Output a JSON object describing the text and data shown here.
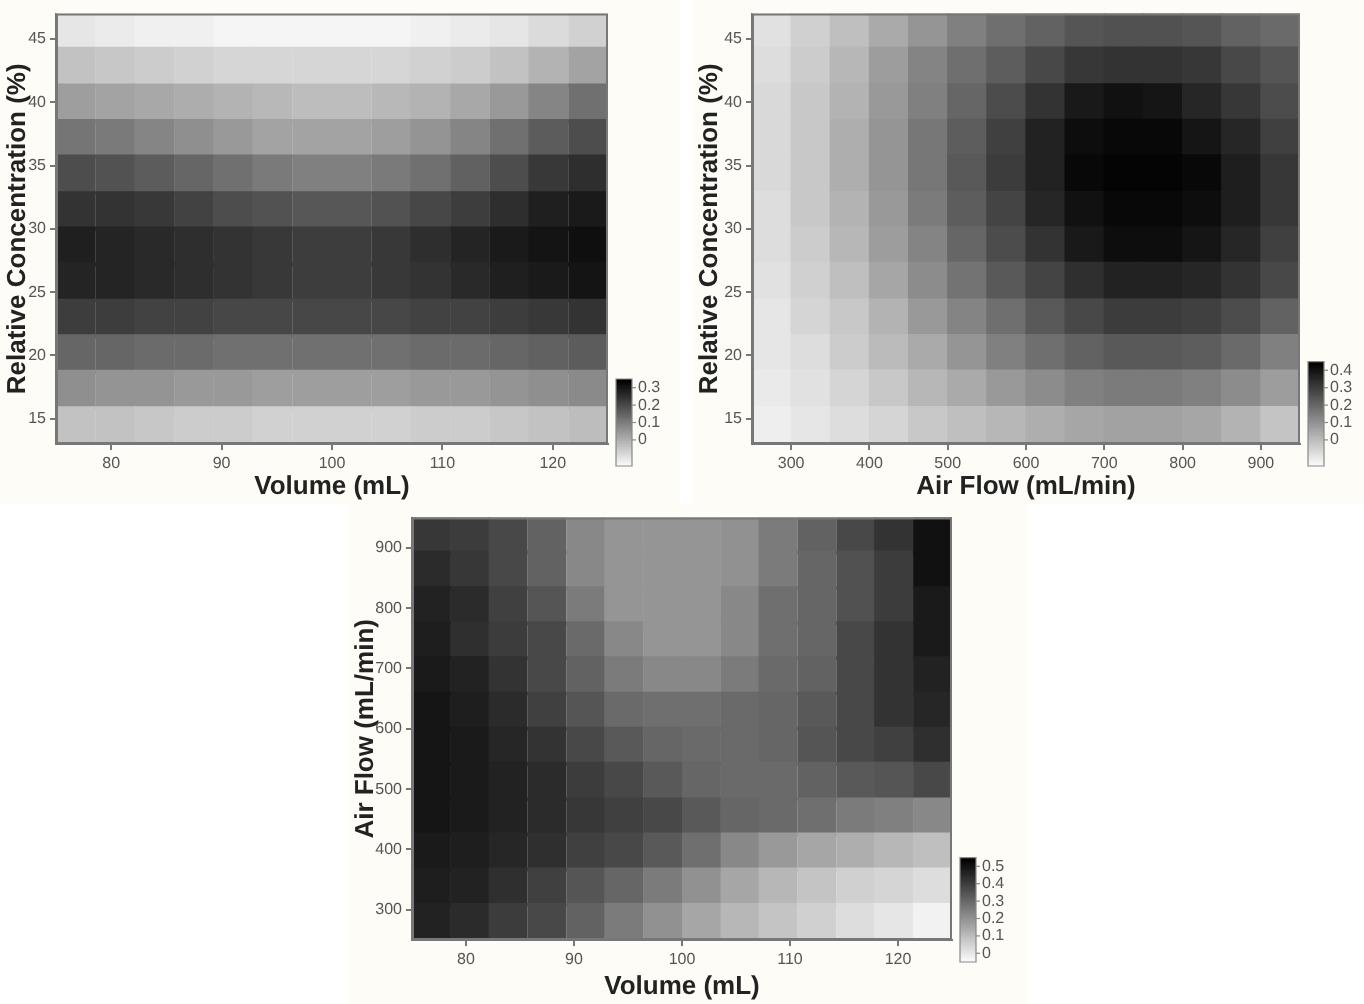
{
  "chart_data": [
    {
      "type": "scatter",
      "xlabel": "Volume (mL)",
      "ylabel": "Relative Concentration (%)",
      "marker": "square",
      "x": [
        76.8,
        80.4,
        83.9,
        87.5,
        91.1,
        94.6,
        98.2,
        101.8,
        105.4,
        108.9,
        112.5,
        116.1,
        119.6,
        123.2,
        76.8,
        80.4,
        83.9,
        87.5,
        91.1,
        94.6,
        98.2,
        101.8,
        105.4,
        108.9,
        112.5,
        116.1,
        119.6,
        123.2,
        76.8,
        80.4,
        83.9,
        87.5,
        91.1,
        94.6,
        98.2,
        101.8,
        105.4,
        108.9,
        112.5,
        116.1,
        119.6,
        123.2,
        76.8,
        80.4,
        83.9,
        87.5,
        91.1,
        94.6,
        98.2,
        101.8,
        105.4,
        108.9,
        112.5,
        116.1,
        119.6,
        123.2,
        76.8,
        80.4,
        83.9,
        87.5,
        91.1,
        94.6,
        98.2,
        101.8,
        105.4,
        108.9,
        112.5,
        116.1,
        119.6,
        123.2,
        76.8,
        80.4,
        83.9,
        87.5,
        91.1,
        94.6,
        98.2,
        101.8,
        105.4,
        108.9,
        112.5,
        116.1,
        119.6,
        123.2,
        76.8,
        80.4,
        83.9,
        87.5,
        91.1,
        94.6,
        98.2,
        101.8,
        105.4,
        108.9,
        112.5,
        116.1,
        119.6,
        123.2,
        76.8,
        80.4,
        83.9,
        87.5,
        91.1,
        94.6,
        98.2,
        101.8,
        105.4,
        108.9,
        112.5,
        116.1,
        119.6,
        123.2,
        76.8,
        80.4,
        83.9,
        87.5,
        91.1,
        94.6,
        98.2,
        101.8,
        105.4,
        108.9,
        112.5,
        116.1,
        119.6,
        123.2,
        76.8,
        80.4,
        83.9,
        87.5,
        91.1,
        94.6,
        98.2,
        101.8,
        105.4,
        108.9,
        112.5,
        116.1,
        119.6,
        123.2,
        76.8,
        80.4,
        83.9,
        87.5,
        91.1,
        94.6,
        98.2,
        101.8,
        105.4,
        108.9,
        112.5,
        116.1,
        119.6,
        123.2,
        76.8,
        80.4,
        83.9,
        87.5,
        91.1,
        94.6,
        98.2,
        101.8,
        105.4,
        108.9,
        112.5,
        116.1,
        119.6,
        123.2
      ],
      "values": [
        45.6,
        45.6,
        45.6,
        45.6,
        45.6,
        45.6,
        45.6,
        45.6,
        45.6,
        45.6,
        45.6,
        45.6,
        45.6,
        45.6,
        42.8,
        42.8,
        42.8,
        42.8,
        42.8,
        42.8,
        42.8,
        42.8,
        42.8,
        42.8,
        42.8,
        42.8,
        42.8,
        42.8,
        39.9,
        39.9,
        39.9,
        39.9,
        39.9,
        39.9,
        39.9,
        39.9,
        39.9,
        39.9,
        39.9,
        39.9,
        39.9,
        39.9,
        37.1,
        37.1,
        37.1,
        37.1,
        37.1,
        37.1,
        37.1,
        37.1,
        37.1,
        37.1,
        37.1,
        37.1,
        37.1,
        37.1,
        34.3,
        34.3,
        34.3,
        34.3,
        34.3,
        34.3,
        34.3,
        34.3,
        34.3,
        34.3,
        34.3,
        34.3,
        34.3,
        34.3,
        31.4,
        31.4,
        31.4,
        31.4,
        31.4,
        31.4,
        31.4,
        31.4,
        31.4,
        31.4,
        31.4,
        31.4,
        31.4,
        31.4,
        28.6,
        28.6,
        28.6,
        28.6,
        28.6,
        28.6,
        28.6,
        28.6,
        28.6,
        28.6,
        28.6,
        28.6,
        28.6,
        28.6,
        25.8,
        25.8,
        25.8,
        25.8,
        25.8,
        25.8,
        25.8,
        25.8,
        25.8,
        25.8,
        25.8,
        25.8,
        25.8,
        25.8,
        22.9,
        22.9,
        22.9,
        22.9,
        22.9,
        22.9,
        22.9,
        22.9,
        22.9,
        22.9,
        22.9,
        22.9,
        22.9,
        22.9,
        20.1,
        20.1,
        20.1,
        20.1,
        20.1,
        20.1,
        20.1,
        20.1,
        20.1,
        20.1,
        20.1,
        20.1,
        20.1,
        20.1,
        17.3,
        17.3,
        17.3,
        17.3,
        17.3,
        17.3,
        17.3,
        17.3,
        17.3,
        17.3,
        17.3,
        17.3,
        17.3,
        17.3,
        14.4,
        14.4,
        14.4,
        14.4,
        14.4,
        14.4,
        14.4,
        14.4,
        14.4,
        14.4,
        14.4,
        14.4,
        14.4,
        14.4
      ],
      "cvalues": [
        -0.1,
        -0.11,
        -0.12,
        -0.12,
        -0.13,
        -0.13,
        -0.13,
        -0.13,
        -0.13,
        -0.12,
        -0.11,
        -0.1,
        -0.08,
        -0.06,
        -0.03,
        -0.04,
        -0.05,
        -0.06,
        -0.07,
        -0.07,
        -0.07,
        -0.07,
        -0.07,
        -0.06,
        -0.05,
        -0.03,
        0.0,
        0.03,
        0.04,
        0.03,
        0.02,
        0.01,
        0.0,
        -0.01,
        -0.02,
        -0.02,
        -0.01,
        0.0,
        0.02,
        0.05,
        0.09,
        0.13,
        0.12,
        0.11,
        0.09,
        0.07,
        0.05,
        0.03,
        0.03,
        0.03,
        0.04,
        0.06,
        0.09,
        0.13,
        0.17,
        0.2,
        0.2,
        0.19,
        0.17,
        0.15,
        0.13,
        0.11,
        0.1,
        0.1,
        0.11,
        0.13,
        0.16,
        0.2,
        0.24,
        0.26,
        0.25,
        0.25,
        0.24,
        0.22,
        0.2,
        0.19,
        0.18,
        0.18,
        0.19,
        0.21,
        0.23,
        0.26,
        0.29,
        0.3,
        0.29,
        0.28,
        0.27,
        0.26,
        0.25,
        0.24,
        0.23,
        0.23,
        0.24,
        0.26,
        0.28,
        0.3,
        0.31,
        0.32,
        0.28,
        0.28,
        0.27,
        0.26,
        0.25,
        0.24,
        0.23,
        0.23,
        0.24,
        0.25,
        0.27,
        0.29,
        0.3,
        0.31,
        0.23,
        0.23,
        0.22,
        0.22,
        0.21,
        0.21,
        0.21,
        0.21,
        0.21,
        0.22,
        0.22,
        0.23,
        0.24,
        0.25,
        0.15,
        0.15,
        0.14,
        0.14,
        0.13,
        0.13,
        0.13,
        0.13,
        0.13,
        0.14,
        0.14,
        0.15,
        0.16,
        0.17,
        0.07,
        0.06,
        0.06,
        0.05,
        0.05,
        0.04,
        0.04,
        0.04,
        0.04,
        0.05,
        0.05,
        0.06,
        0.07,
        0.08,
        -0.03,
        -0.03,
        -0.04,
        -0.05,
        -0.05,
        -0.06,
        -0.06,
        -0.06,
        -0.06,
        -0.05,
        -0.05,
        -0.04,
        -0.03,
        -0.02
      ],
      "xlim": [
        75,
        125
      ],
      "xticks": [
        80,
        90,
        100,
        110,
        120
      ],
      "ylim": [
        13,
        47
      ],
      "yticks": [
        15,
        20,
        25,
        30,
        35,
        40,
        45
      ],
      "clim": [
        -0.15,
        0.35
      ],
      "cticks": [
        0,
        0.1,
        0.2,
        0.3
      ]
    },
    {
      "type": "scatter",
      "xlabel": "Air Flow (mL/min)",
      "ylabel": "Relative Concentration (%)",
      "marker": "square",
      "x": [
        275,
        325,
        375,
        425,
        475,
        525,
        575,
        625,
        675,
        725,
        775,
        825,
        875,
        925,
        275,
        325,
        375,
        425,
        475,
        525,
        575,
        625,
        675,
        725,
        775,
        825,
        875,
        925,
        275,
        325,
        375,
        425,
        475,
        525,
        575,
        625,
        675,
        725,
        775,
        825,
        875,
        925,
        275,
        325,
        375,
        425,
        475,
        525,
        575,
        625,
        675,
        725,
        775,
        825,
        875,
        925,
        275,
        325,
        375,
        425,
        475,
        525,
        575,
        625,
        675,
        725,
        775,
        825,
        875,
        925,
        275,
        325,
        375,
        425,
        475,
        525,
        575,
        625,
        675,
        725,
        775,
        825,
        875,
        925,
        275,
        325,
        375,
        425,
        475,
        525,
        575,
        625,
        675,
        725,
        775,
        825,
        875,
        925,
        275,
        325,
        375,
        425,
        475,
        525,
        575,
        625,
        675,
        725,
        775,
        825,
        875,
        925,
        275,
        325,
        375,
        425,
        475,
        525,
        575,
        625,
        675,
        725,
        775,
        825,
        875,
        925,
        275,
        325,
        375,
        425,
        475,
        525,
        575,
        625,
        675,
        725,
        775,
        825,
        875,
        925,
        275,
        325,
        375,
        425,
        475,
        525,
        575,
        625,
        675,
        725,
        775,
        825,
        875,
        925,
        275,
        325,
        375,
        425,
        475,
        525,
        575,
        625,
        675,
        725,
        775,
        825,
        875,
        925
      ],
      "values": [
        45.6,
        45.6,
        45.6,
        45.6,
        45.6,
        45.6,
        45.6,
        45.6,
        45.6,
        45.6,
        45.6,
        45.6,
        45.6,
        45.6,
        42.8,
        42.8,
        42.8,
        42.8,
        42.8,
        42.8,
        42.8,
        42.8,
        42.8,
        42.8,
        42.8,
        42.8,
        42.8,
        42.8,
        39.9,
        39.9,
        39.9,
        39.9,
        39.9,
        39.9,
        39.9,
        39.9,
        39.9,
        39.9,
        39.9,
        39.9,
        39.9,
        39.9,
        37.1,
        37.1,
        37.1,
        37.1,
        37.1,
        37.1,
        37.1,
        37.1,
        37.1,
        37.1,
        37.1,
        37.1,
        37.1,
        37.1,
        34.3,
        34.3,
        34.3,
        34.3,
        34.3,
        34.3,
        34.3,
        34.3,
        34.3,
        34.3,
        34.3,
        34.3,
        34.3,
        34.3,
        31.4,
        31.4,
        31.4,
        31.4,
        31.4,
        31.4,
        31.4,
        31.4,
        31.4,
        31.4,
        31.4,
        31.4,
        31.4,
        31.4,
        28.6,
        28.6,
        28.6,
        28.6,
        28.6,
        28.6,
        28.6,
        28.6,
        28.6,
        28.6,
        28.6,
        28.6,
        28.6,
        28.6,
        25.8,
        25.8,
        25.8,
        25.8,
        25.8,
        25.8,
        25.8,
        25.8,
        25.8,
        25.8,
        25.8,
        25.8,
        25.8,
        25.8,
        22.9,
        22.9,
        22.9,
        22.9,
        22.9,
        22.9,
        22.9,
        22.9,
        22.9,
        22.9,
        22.9,
        22.9,
        22.9,
        22.9,
        20.1,
        20.1,
        20.1,
        20.1,
        20.1,
        20.1,
        20.1,
        20.1,
        20.1,
        20.1,
        20.1,
        20.1,
        20.1,
        20.1,
        17.3,
        17.3,
        17.3,
        17.3,
        17.3,
        17.3,
        17.3,
        17.3,
        17.3,
        17.3,
        17.3,
        17.3,
        17.3,
        17.3,
        14.4,
        14.4,
        14.4,
        14.4,
        14.4,
        14.4,
        14.4,
        14.4,
        14.4,
        14.4,
        14.4,
        14.4,
        14.4,
        14.4
      ],
      "cvalues": [
        -0.08,
        -0.04,
        0.0,
        0.05,
        0.1,
        0.15,
        0.19,
        0.22,
        0.25,
        0.26,
        0.26,
        0.25,
        0.22,
        0.2,
        -0.07,
        -0.03,
        0.02,
        0.08,
        0.14,
        0.19,
        0.23,
        0.28,
        0.32,
        0.33,
        0.33,
        0.32,
        0.28,
        0.25,
        -0.06,
        -0.02,
        0.03,
        0.09,
        0.15,
        0.21,
        0.27,
        0.33,
        0.39,
        0.41,
        0.4,
        0.36,
        0.32,
        0.27,
        -0.06,
        -0.02,
        0.04,
        0.1,
        0.17,
        0.23,
        0.3,
        0.37,
        0.42,
        0.43,
        0.43,
        0.4,
        0.36,
        0.3,
        -0.06,
        -0.02,
        0.04,
        0.1,
        0.17,
        0.24,
        0.31,
        0.37,
        0.43,
        0.44,
        0.44,
        0.43,
        0.38,
        0.32,
        -0.07,
        -0.02,
        0.03,
        0.09,
        0.16,
        0.23,
        0.29,
        0.36,
        0.41,
        0.43,
        0.43,
        0.42,
        0.38,
        0.32,
        -0.07,
        -0.03,
        0.02,
        0.08,
        0.14,
        0.21,
        0.27,
        0.33,
        0.39,
        0.42,
        0.42,
        0.4,
        0.36,
        0.3,
        -0.08,
        -0.04,
        0.0,
        0.06,
        0.12,
        0.18,
        0.24,
        0.29,
        0.34,
        0.37,
        0.37,
        0.36,
        0.33,
        0.28,
        -0.09,
        -0.05,
        -0.02,
        0.03,
        0.09,
        0.14,
        0.19,
        0.24,
        0.28,
        0.31,
        0.31,
        0.3,
        0.27,
        0.22,
        -0.09,
        -0.07,
        -0.03,
        0.01,
        0.05,
        0.1,
        0.15,
        0.19,
        0.22,
        0.24,
        0.24,
        0.23,
        0.2,
        0.15,
        -0.1,
        -0.08,
        -0.05,
        -0.02,
        0.02,
        0.05,
        0.09,
        0.12,
        0.15,
        0.16,
        0.16,
        0.15,
        0.12,
        0.08,
        -0.11,
        -0.09,
        -0.07,
        -0.05,
        -0.02,
        0.0,
        0.02,
        0.04,
        0.06,
        0.07,
        0.07,
        0.06,
        0.03,
        -0.01
      ],
      "xlim": [
        250,
        950
      ],
      "xticks": [
        300,
        400,
        500,
        600,
        700,
        800,
        900
      ],
      "ylim": [
        13,
        47
      ],
      "yticks": [
        15,
        20,
        25,
        30,
        35,
        40,
        45
      ],
      "clim": [
        -0.15,
        0.45
      ],
      "cticks": [
        0,
        0.1,
        0.2,
        0.3,
        0.4
      ]
    },
    {
      "type": "scatter",
      "xlabel": "Volume (mL)",
      "ylabel": "Air Flow (mL/min)",
      "marker": "square",
      "x": [
        76.8,
        80.4,
        83.9,
        87.5,
        91.1,
        94.6,
        98.2,
        101.8,
        105.4,
        108.9,
        112.5,
        116.1,
        119.6,
        123.2,
        76.8,
        80.4,
        83.9,
        87.5,
        91.1,
        94.6,
        98.2,
        101.8,
        105.4,
        108.9,
        112.5,
        116.1,
        119.6,
        123.2,
        76.8,
        80.4,
        83.9,
        87.5,
        91.1,
        94.6,
        98.2,
        101.8,
        105.4,
        108.9,
        112.5,
        116.1,
        119.6,
        123.2,
        76.8,
        80.4,
        83.9,
        87.5,
        91.1,
        94.6,
        98.2,
        101.8,
        105.4,
        108.9,
        112.5,
        116.1,
        119.6,
        123.2,
        76.8,
        80.4,
        83.9,
        87.5,
        91.1,
        94.6,
        98.2,
        101.8,
        105.4,
        108.9,
        112.5,
        116.1,
        119.6,
        123.2,
        76.8,
        80.4,
        83.9,
        87.5,
        91.1,
        94.6,
        98.2,
        101.8,
        105.4,
        108.9,
        112.5,
        116.1,
        119.6,
        123.2,
        76.8,
        80.4,
        83.9,
        87.5,
        91.1,
        94.6,
        98.2,
        101.8,
        105.4,
        108.9,
        112.5,
        116.1,
        119.6,
        123.2,
        76.8,
        80.4,
        83.9,
        87.5,
        91.1,
        94.6,
        98.2,
        101.8,
        105.4,
        108.9,
        112.5,
        116.1,
        119.6,
        123.2,
        76.8,
        80.4,
        83.9,
        87.5,
        91.1,
        94.6,
        98.2,
        101.8,
        105.4,
        108.9,
        112.5,
        116.1,
        119.6,
        123.2,
        76.8,
        80.4,
        83.9,
        87.5,
        91.1,
        94.6,
        98.2,
        101.8,
        105.4,
        108.9,
        112.5,
        116.1,
        119.6,
        123.2,
        76.8,
        80.4,
        83.9,
        87.5,
        91.1,
        94.6,
        98.2,
        101.8,
        105.4,
        108.9,
        112.5,
        116.1,
        119.6,
        123.2,
        76.8,
        80.4,
        83.9,
        87.5,
        91.1,
        94.6,
        98.2,
        101.8,
        105.4,
        108.9,
        112.5,
        116.1,
        119.6,
        123.2
      ],
      "values": [
        921,
        921,
        921,
        921,
        921,
        921,
        921,
        921,
        921,
        921,
        921,
        921,
        921,
        921,
        863,
        863,
        863,
        863,
        863,
        863,
        863,
        863,
        863,
        863,
        863,
        863,
        863,
        863,
        804,
        804,
        804,
        804,
        804,
        804,
        804,
        804,
        804,
        804,
        804,
        804,
        804,
        804,
        746,
        746,
        746,
        746,
        746,
        746,
        746,
        746,
        746,
        746,
        746,
        746,
        746,
        746,
        688,
        688,
        688,
        688,
        688,
        688,
        688,
        688,
        688,
        688,
        688,
        688,
        688,
        688,
        629,
        629,
        629,
        629,
        629,
        629,
        629,
        629,
        629,
        629,
        629,
        629,
        629,
        629,
        571,
        571,
        571,
        571,
        571,
        571,
        571,
        571,
        571,
        571,
        571,
        571,
        571,
        571,
        513,
        513,
        513,
        513,
        513,
        513,
        513,
        513,
        513,
        513,
        513,
        513,
        513,
        513,
        454,
        454,
        454,
        454,
        454,
        454,
        454,
        454,
        454,
        454,
        454,
        454,
        454,
        454,
        396,
        396,
        396,
        396,
        396,
        396,
        396,
        396,
        396,
        396,
        396,
        396,
        396,
        396,
        338,
        338,
        338,
        338,
        338,
        338,
        338,
        338,
        338,
        338,
        338,
        338,
        338,
        338,
        279,
        279,
        279,
        279,
        279,
        279,
        279,
        279,
        279,
        279,
        279,
        279,
        279,
        279
      ],
      "cvalues": [
        0.42,
        0.41,
        0.38,
        0.32,
        0.23,
        0.2,
        0.2,
        0.2,
        0.21,
        0.26,
        0.32,
        0.38,
        0.43,
        0.51,
        0.45,
        0.42,
        0.38,
        0.32,
        0.23,
        0.2,
        0.2,
        0.2,
        0.21,
        0.26,
        0.31,
        0.36,
        0.41,
        0.51,
        0.47,
        0.45,
        0.4,
        0.35,
        0.26,
        0.2,
        0.2,
        0.2,
        0.23,
        0.29,
        0.31,
        0.36,
        0.41,
        0.49,
        0.48,
        0.44,
        0.41,
        0.38,
        0.3,
        0.23,
        0.2,
        0.2,
        0.23,
        0.29,
        0.31,
        0.38,
        0.43,
        0.49,
        0.49,
        0.47,
        0.43,
        0.38,
        0.32,
        0.26,
        0.23,
        0.23,
        0.26,
        0.3,
        0.32,
        0.38,
        0.43,
        0.47,
        0.5,
        0.48,
        0.45,
        0.4,
        0.35,
        0.3,
        0.29,
        0.29,
        0.3,
        0.31,
        0.34,
        0.38,
        0.43,
        0.46,
        0.5,
        0.49,
        0.46,
        0.43,
        0.38,
        0.34,
        0.31,
        0.3,
        0.3,
        0.31,
        0.35,
        0.38,
        0.4,
        0.44,
        0.5,
        0.49,
        0.47,
        0.45,
        0.41,
        0.38,
        0.34,
        0.31,
        0.3,
        0.3,
        0.32,
        0.34,
        0.35,
        0.38,
        0.5,
        0.49,
        0.47,
        0.45,
        0.42,
        0.4,
        0.38,
        0.34,
        0.31,
        0.3,
        0.29,
        0.26,
        0.25,
        0.23,
        0.49,
        0.48,
        0.46,
        0.44,
        0.4,
        0.38,
        0.34,
        0.29,
        0.23,
        0.19,
        0.16,
        0.14,
        0.12,
        0.1,
        0.48,
        0.47,
        0.44,
        0.4,
        0.35,
        0.31,
        0.26,
        0.21,
        0.16,
        0.12,
        0.09,
        0.06,
        0.05,
        0.03,
        0.47,
        0.45,
        0.41,
        0.38,
        0.32,
        0.26,
        0.21,
        0.16,
        0.12,
        0.09,
        0.06,
        0.03,
        0.01,
        -0.02
      ],
      "xlim": [
        75,
        125
      ],
      "xticks": [
        80,
        90,
        100,
        110,
        120
      ],
      "ylim": [
        250,
        950
      ],
      "yticks": [
        300,
        400,
        500,
        600,
        700,
        800,
        900
      ],
      "clim": [
        -0.05,
        0.55
      ],
      "cticks": [
        0,
        0.1,
        0.2,
        0.3,
        0.4,
        0.5
      ]
    }
  ]
}
